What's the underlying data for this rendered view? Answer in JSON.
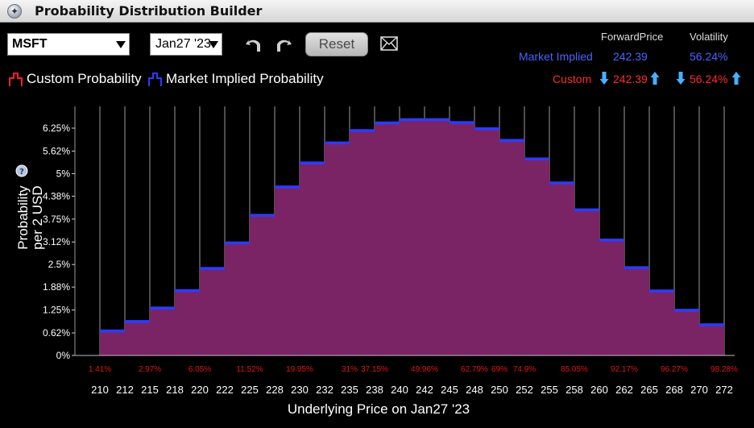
{
  "window": {
    "title": "Probability Distribution Builder"
  },
  "controls": {
    "ticker": "MSFT",
    "expiry": "Jan27 '23",
    "reset_label": "Reset"
  },
  "legend": {
    "custom": "Custom Probability",
    "market": "Market Implied Probability"
  },
  "summary": {
    "col_forward": "ForwardPrice",
    "col_vol": "Volatility",
    "market_label": "Market Implied",
    "market_forward": "242.39",
    "market_vol": "56.24%",
    "custom_label": "Custom",
    "custom_forward": "242.39",
    "custom_vol": "56.24%"
  },
  "colors": {
    "custom": "#ff2020",
    "market": "#2a3cff",
    "fill": "#7a2466",
    "cumulative": "#e01515"
  },
  "chart_data": {
    "type": "bar",
    "xlabel": "Underlying Price on Jan27 '23",
    "ylabel": "Probability per 2 USD",
    "y_ticks": [
      "0%",
      "0.62%",
      "1.25%",
      "1.88%",
      "2.5%",
      "3.12%",
      "3.75%",
      "4.38%",
      "5%",
      "5.62%",
      "6.25%"
    ],
    "ylim": [
      0,
      6.25
    ],
    "x_ticks": [
      "210",
      "212",
      "215",
      "218",
      "220",
      "222",
      "225",
      "228",
      "230",
      "232",
      "235",
      "238",
      "240",
      "242",
      "245",
      "248",
      "250",
      "252",
      "255",
      "258",
      "260",
      "262",
      "265",
      "268",
      "270",
      "272"
    ],
    "values": [
      0.68,
      0.94,
      1.31,
      1.79,
      2.4,
      3.1,
      3.86,
      4.64,
      5.3,
      5.85,
      6.19,
      6.4,
      6.49,
      6.49,
      6.41,
      6.24,
      5.92,
      5.41,
      4.75,
      4.01,
      3.18,
      2.42,
      1.78,
      1.25,
      0.85
    ],
    "cumulative_labels": [
      {
        "text": "1.41%",
        "at": 210
      },
      {
        "text": "2.97%",
        "at": 215
      },
      {
        "text": "6.05%",
        "at": 220
      },
      {
        "text": "11.52%",
        "at": 225
      },
      {
        "text": "19.95%",
        "at": 230
      },
      {
        "text": "31%",
        "at": 235
      },
      {
        "text": "37.15%",
        "at": 238
      },
      {
        "text": "49.96%",
        "at": 242
      },
      {
        "text": "62.79%",
        "at": 248
      },
      {
        "text": "69%",
        "at": 250
      },
      {
        "text": "74.9%",
        "at": 252
      },
      {
        "text": "85.05%",
        "at": 258
      },
      {
        "text": "92.17%",
        "at": 262
      },
      {
        "text": "96.27%",
        "at": 268
      },
      {
        "text": "98.28%",
        "at": 272
      }
    ]
  }
}
